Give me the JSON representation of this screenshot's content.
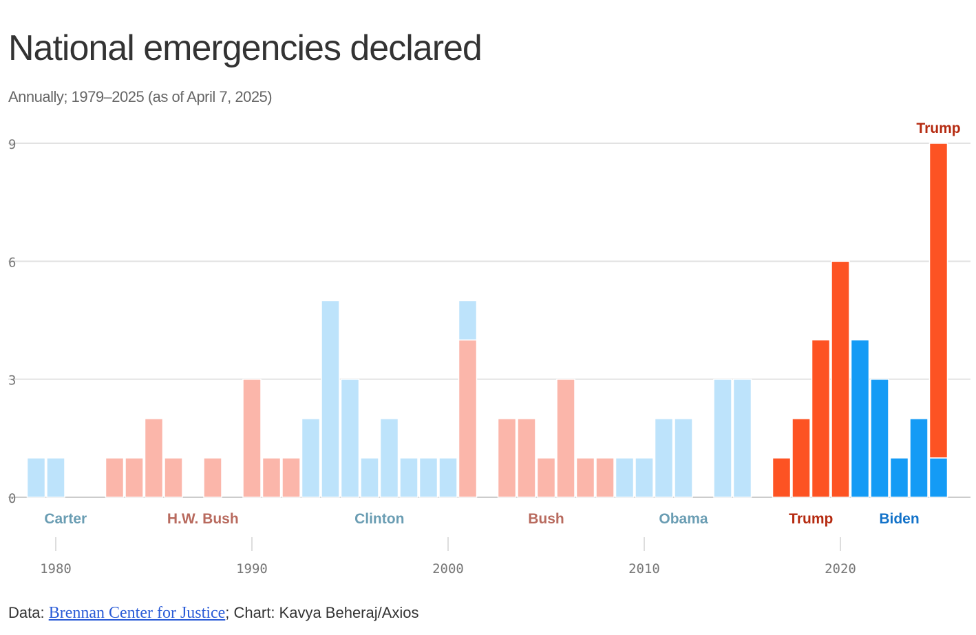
{
  "header": {
    "title": "National emergencies declared",
    "subtitle": "Annually; 1979–2025 (as of April 7, 2025)"
  },
  "footer": {
    "prefix": "Data: ",
    "source_link": "Brennan Center for Justice",
    "suffix": "; Chart: Kavya Beheraj/Axios"
  },
  "chart_data": {
    "type": "bar",
    "stacked": true,
    "title": "National emergencies declared",
    "subtitle": "Annually; 1979–2025 (as of April 7, 2025)",
    "xlim": [
      1979,
      2025
    ],
    "ylim": [
      0,
      9
    ],
    "y_ticks": [
      0,
      3,
      6,
      9
    ],
    "x_ticks": [
      1980,
      1990,
      2000,
      2010,
      2020
    ],
    "grid": true,
    "presidents": [
      {
        "name": "Carter",
        "color": "#bde3fb",
        "label_color": "#6a9db3",
        "label_year": 1980.5
      },
      {
        "name": "H.W. Bush",
        "color": "#fbb6aa",
        "label_color": "#b86a5e",
        "label_year": 1987.5
      },
      {
        "name": "Clinton",
        "color": "#bde3fb",
        "label_color": "#6a9db3",
        "label_year": 1996.5
      },
      {
        "name": "Bush",
        "color": "#fbb6aa",
        "label_color": "#b86a5e",
        "label_year": 2005
      },
      {
        "name": "Obama",
        "color": "#bde3fb",
        "label_color": "#6a9db3",
        "label_year": 2012
      },
      {
        "name": "Trump",
        "color": "#fd5323",
        "label_color": "#b52a10",
        "label_year": 2018.5
      },
      {
        "name": "Biden",
        "color": "#149bf5",
        "label_color": "#1272c9",
        "label_year": 2023
      },
      {
        "name": "Trump",
        "color": "#fd5323",
        "label_color": "#b52a10",
        "label_year": 2025,
        "top": true
      }
    ],
    "bars": [
      {
        "year": 1979,
        "segments": [
          {
            "president": 0,
            "value": 1
          }
        ]
      },
      {
        "year": 1980,
        "segments": [
          {
            "president": 0,
            "value": 1
          }
        ]
      },
      {
        "year": 1981,
        "segments": []
      },
      {
        "year": 1982,
        "segments": []
      },
      {
        "year": 1983,
        "segments": [
          {
            "president": 1,
            "value": 1
          }
        ]
      },
      {
        "year": 1984,
        "segments": [
          {
            "president": 1,
            "value": 1
          }
        ]
      },
      {
        "year": 1985,
        "segments": [
          {
            "president": 1,
            "value": 2
          }
        ]
      },
      {
        "year": 1986,
        "segments": [
          {
            "president": 1,
            "value": 1
          }
        ]
      },
      {
        "year": 1987,
        "segments": []
      },
      {
        "year": 1988,
        "segments": [
          {
            "president": 1,
            "value": 1
          }
        ]
      },
      {
        "year": 1989,
        "segments": []
      },
      {
        "year": 1990,
        "segments": [
          {
            "president": 1,
            "value": 3
          }
        ]
      },
      {
        "year": 1991,
        "segments": [
          {
            "president": 1,
            "value": 1
          }
        ]
      },
      {
        "year": 1992,
        "segments": [
          {
            "president": 1,
            "value": 1
          }
        ]
      },
      {
        "year": 1993,
        "segments": [
          {
            "president": 2,
            "value": 2
          }
        ]
      },
      {
        "year": 1994,
        "segments": [
          {
            "president": 2,
            "value": 5
          }
        ]
      },
      {
        "year": 1995,
        "segments": [
          {
            "president": 2,
            "value": 3
          }
        ]
      },
      {
        "year": 1996,
        "segments": [
          {
            "president": 2,
            "value": 1
          }
        ]
      },
      {
        "year": 1997,
        "segments": [
          {
            "president": 2,
            "value": 2
          }
        ]
      },
      {
        "year": 1998,
        "segments": [
          {
            "president": 2,
            "value": 1
          }
        ]
      },
      {
        "year": 1999,
        "segments": [
          {
            "president": 2,
            "value": 1
          }
        ]
      },
      {
        "year": 2000,
        "segments": [
          {
            "president": 2,
            "value": 1
          }
        ]
      },
      {
        "year": 2001,
        "segments": [
          {
            "president": 3,
            "value": 4
          },
          {
            "president": 2,
            "value": 1
          }
        ]
      },
      {
        "year": 2002,
        "segments": []
      },
      {
        "year": 2003,
        "segments": [
          {
            "president": 3,
            "value": 2
          }
        ]
      },
      {
        "year": 2004,
        "segments": [
          {
            "president": 3,
            "value": 2
          }
        ]
      },
      {
        "year": 2005,
        "segments": [
          {
            "president": 3,
            "value": 1
          }
        ]
      },
      {
        "year": 2006,
        "segments": [
          {
            "president": 3,
            "value": 3
          }
        ]
      },
      {
        "year": 2007,
        "segments": [
          {
            "president": 3,
            "value": 1
          }
        ]
      },
      {
        "year": 2008,
        "segments": [
          {
            "president": 3,
            "value": 1
          }
        ]
      },
      {
        "year": 2009,
        "segments": [
          {
            "president": 4,
            "value": 1
          }
        ]
      },
      {
        "year": 2010,
        "segments": [
          {
            "president": 4,
            "value": 1
          }
        ]
      },
      {
        "year": 2011,
        "segments": [
          {
            "president": 4,
            "value": 2
          }
        ]
      },
      {
        "year": 2012,
        "segments": [
          {
            "president": 4,
            "value": 2
          }
        ]
      },
      {
        "year": 2013,
        "segments": []
      },
      {
        "year": 2014,
        "segments": [
          {
            "president": 4,
            "value": 3
          }
        ]
      },
      {
        "year": 2015,
        "segments": [
          {
            "president": 4,
            "value": 3
          }
        ]
      },
      {
        "year": 2016,
        "segments": []
      },
      {
        "year": 2017,
        "segments": [
          {
            "president": 5,
            "value": 1
          }
        ]
      },
      {
        "year": 2018,
        "segments": [
          {
            "president": 5,
            "value": 2
          }
        ]
      },
      {
        "year": 2019,
        "segments": [
          {
            "president": 5,
            "value": 4
          }
        ]
      },
      {
        "year": 2020,
        "segments": [
          {
            "president": 5,
            "value": 6
          }
        ]
      },
      {
        "year": 2021,
        "segments": [
          {
            "president": 6,
            "value": 4
          }
        ]
      },
      {
        "year": 2022,
        "segments": [
          {
            "president": 6,
            "value": 3
          }
        ]
      },
      {
        "year": 2023,
        "segments": [
          {
            "president": 6,
            "value": 1
          }
        ]
      },
      {
        "year": 2024,
        "segments": [
          {
            "president": 6,
            "value": 2
          }
        ]
      },
      {
        "year": 2025,
        "segments": [
          {
            "president": 6,
            "value": 1
          },
          {
            "president": 7,
            "value": 8
          }
        ]
      }
    ]
  }
}
